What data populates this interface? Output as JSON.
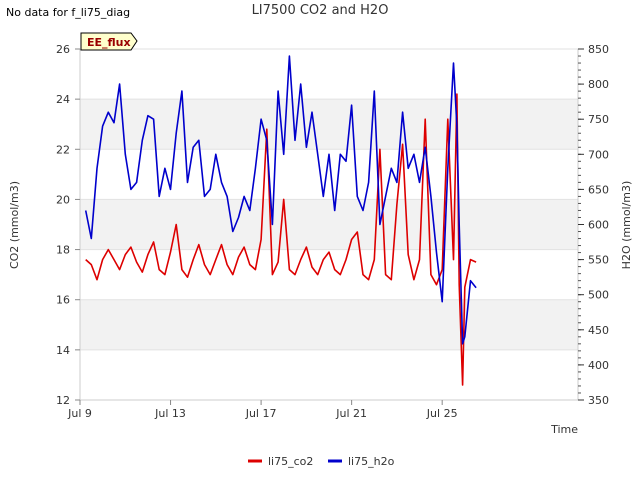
{
  "no_data_text": "No data for f_li75_diag",
  "chart_data": {
    "type": "line",
    "title": "LI7500 CO2 and H2O",
    "xlabel": "Time",
    "ylabel": "CO2 (mmol/m3)",
    "y2label": "H2O (mmol/m3)",
    "badge": "EE_flux",
    "ylim": [
      12,
      26
    ],
    "y2lim": [
      350,
      850
    ],
    "xlim": [
      0,
      44
    ],
    "x_ticks": [
      0,
      8,
      16,
      24,
      32
    ],
    "x_tick_labels": [
      "Jul 9",
      "Jul 13",
      "Jul 17",
      "Jul 21",
      "Jul 25"
    ],
    "y_ticks": [
      12,
      14,
      16,
      18,
      20,
      22,
      24,
      26
    ],
    "y_tick_labels": [
      "12",
      "14",
      "16",
      "18",
      "20",
      "22",
      "24",
      "26"
    ],
    "y2_ticks": [
      350,
      400,
      450,
      500,
      550,
      600,
      650,
      700,
      750,
      800,
      850
    ],
    "y2_tick_labels": [
      "350",
      "400",
      "450",
      "500",
      "550",
      "600",
      "650",
      "700",
      "750",
      "800",
      "850"
    ],
    "bands": [
      [
        14,
        16
      ],
      [
        18,
        20
      ],
      [
        22,
        24
      ]
    ],
    "legend_position": "bottom-center",
    "series": [
      {
        "name": "li75_co2",
        "color": "#dd0000",
        "axis": "left",
        "x": [
          0.5,
          1,
          1.5,
          2,
          2.5,
          3,
          3.5,
          4,
          4.5,
          5,
          5.5,
          6,
          6.5,
          7,
          7.5,
          8,
          8.5,
          9,
          9.5,
          10,
          10.5,
          11,
          11.5,
          12,
          12.5,
          13,
          13.5,
          14,
          14.5,
          15,
          15.5,
          16,
          16.5,
          17,
          17.5,
          18,
          18.5,
          19,
          19.5,
          20,
          20.5,
          21,
          21.5,
          22,
          22.5,
          23,
          23.5,
          24,
          24.5,
          25,
          25.5,
          26,
          26.5,
          27,
          27.5,
          28,
          28.5,
          29,
          29.5,
          30,
          30.5,
          31,
          31.5,
          32,
          32.5,
          33,
          33.3,
          33.5,
          33.8,
          34,
          34.5,
          35
        ],
        "values": [
          17.6,
          17.4,
          16.8,
          17.6,
          18.0,
          17.6,
          17.2,
          17.8,
          18.1,
          17.5,
          17.1,
          17.8,
          18.3,
          17.2,
          17.0,
          17.9,
          19.0,
          17.2,
          16.9,
          17.6,
          18.2,
          17.4,
          17.0,
          17.6,
          18.2,
          17.4,
          17.0,
          17.7,
          18.1,
          17.4,
          17.2,
          18.4,
          22.8,
          17.0,
          17.5,
          20.0,
          17.2,
          17.0,
          17.6,
          18.1,
          17.3,
          17.0,
          17.6,
          17.9,
          17.2,
          17.0,
          17.6,
          18.4,
          18.7,
          17.0,
          16.8,
          17.6,
          22.0,
          17.0,
          16.8,
          19.8,
          22.2,
          17.8,
          16.8,
          17.6,
          23.2,
          17.0,
          16.6,
          17.2,
          23.2,
          17.6,
          24.2,
          16.6,
          12.6,
          16.5,
          17.6,
          17.5
        ]
      },
      {
        "name": "li75_h2o",
        "color": "#0000cc",
        "axis": "right",
        "x": [
          0.5,
          1,
          1.5,
          2,
          2.5,
          3,
          3.5,
          4,
          4.5,
          5,
          5.5,
          6,
          6.5,
          7,
          7.5,
          8,
          8.5,
          9,
          9.5,
          10,
          10.5,
          11,
          11.5,
          12,
          12.5,
          13,
          13.5,
          14,
          14.5,
          15,
          15.5,
          16,
          16.5,
          17,
          17.5,
          18,
          18.5,
          19,
          19.5,
          20,
          20.5,
          21,
          21.5,
          22,
          22.5,
          23,
          23.5,
          24,
          24.5,
          25,
          25.5,
          26,
          26.5,
          27,
          27.5,
          28,
          28.5,
          29,
          29.5,
          30,
          30.5,
          31,
          31.5,
          32,
          32.5,
          33,
          33.3,
          33.5,
          33.8,
          34,
          34.5,
          35
        ],
        "values": [
          620,
          580,
          680,
          740,
          760,
          745,
          800,
          700,
          650,
          660,
          720,
          755,
          750,
          640,
          680,
          650,
          730,
          790,
          660,
          710,
          720,
          640,
          650,
          700,
          660,
          640,
          590,
          610,
          640,
          620,
          680,
          750,
          720,
          600,
          790,
          700,
          840,
          720,
          800,
          710,
          760,
          700,
          640,
          700,
          620,
          700,
          690,
          770,
          640,
          620,
          660,
          790,
          600,
          640,
          680,
          660,
          760,
          680,
          700,
          660,
          710,
          640,
          560,
          490,
          680,
          830,
          740,
          600,
          430,
          440,
          520,
          510
        ]
      }
    ]
  }
}
